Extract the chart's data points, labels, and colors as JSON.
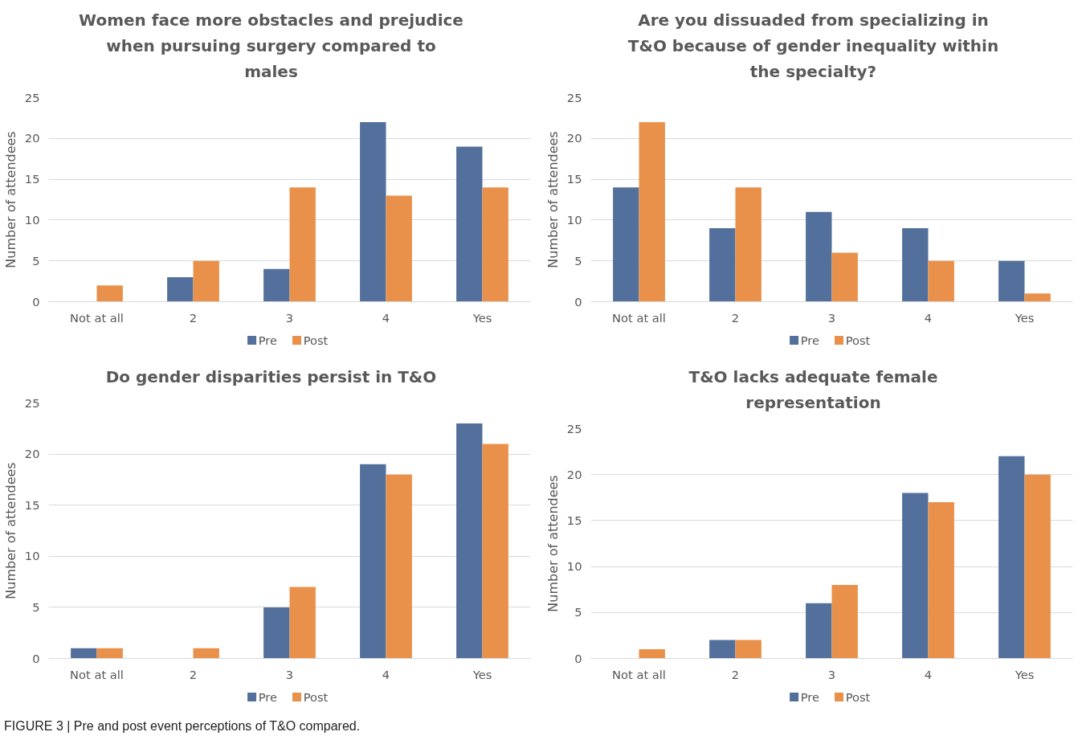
{
  "chart_data": [
    {
      "type": "bar",
      "title": "Women face more obstacles and prejudice when pursuing surgery compared to males",
      "ylabel": "Number of attendees",
      "categories": [
        "Not at all",
        "2",
        "3",
        "4",
        "Yes"
      ],
      "series": [
        {
          "name": "Pre",
          "color": "#52709b",
          "values": [
            0,
            3,
            4,
            22,
            19
          ]
        },
        {
          "name": "Post",
          "color": "#e9914a",
          "values": [
            2,
            5,
            14,
            13,
            14
          ]
        }
      ],
      "ylim": [
        0,
        25
      ],
      "yticks": [
        0,
        5,
        10,
        15,
        20,
        25
      ],
      "grid": "y",
      "legend": "bottom"
    },
    {
      "type": "bar",
      "title": "Are you dissuaded from specializing in T&O because of gender inequality within the specialty?",
      "ylabel": "Number of attendees",
      "categories": [
        "Not at all",
        "2",
        "3",
        "4",
        "Yes"
      ],
      "series": [
        {
          "name": "Pre",
          "color": "#52709b",
          "values": [
            14,
            9,
            11,
            9,
            5
          ]
        },
        {
          "name": "Post",
          "color": "#e9914a",
          "values": [
            22,
            14,
            6,
            5,
            1
          ]
        }
      ],
      "ylim": [
        0,
        25
      ],
      "yticks": [
        0,
        5,
        10,
        15,
        20,
        25
      ],
      "grid": "y",
      "legend": "bottom"
    },
    {
      "type": "bar",
      "title": "Do gender disparities persist in T&O",
      "ylabel": "Number of attendees",
      "categories": [
        "Not at all",
        "2",
        "3",
        "4",
        "Yes"
      ],
      "series": [
        {
          "name": "Pre",
          "color": "#52709b",
          "values": [
            1,
            0,
            5,
            19,
            23
          ]
        },
        {
          "name": "Post",
          "color": "#e9914a",
          "values": [
            1,
            1,
            7,
            18,
            21
          ]
        }
      ],
      "ylim": [
        0,
        25
      ],
      "yticks": [
        0,
        5,
        10,
        15,
        20,
        25
      ],
      "grid": "y",
      "legend": "bottom"
    },
    {
      "type": "bar",
      "title": "T&O lacks adequate female representation",
      "ylabel": "Number of attendees",
      "categories": [
        "Not at all",
        "2",
        "3",
        "4",
        "Yes"
      ],
      "series": [
        {
          "name": "Pre",
          "color": "#52709b",
          "values": [
            0,
            2,
            6,
            18,
            22
          ]
        },
        {
          "name": "Post",
          "color": "#e9914a",
          "values": [
            1,
            2,
            8,
            17,
            20
          ]
        }
      ],
      "ylim": [
        0,
        25
      ],
      "yticks": [
        0,
        5,
        10,
        15,
        20,
        25
      ],
      "grid": "y",
      "legend": "bottom",
      "annotations": [
        "FIGURE 3 | Pre and post event perceptions of T&O compared."
      ]
    }
  ]
}
